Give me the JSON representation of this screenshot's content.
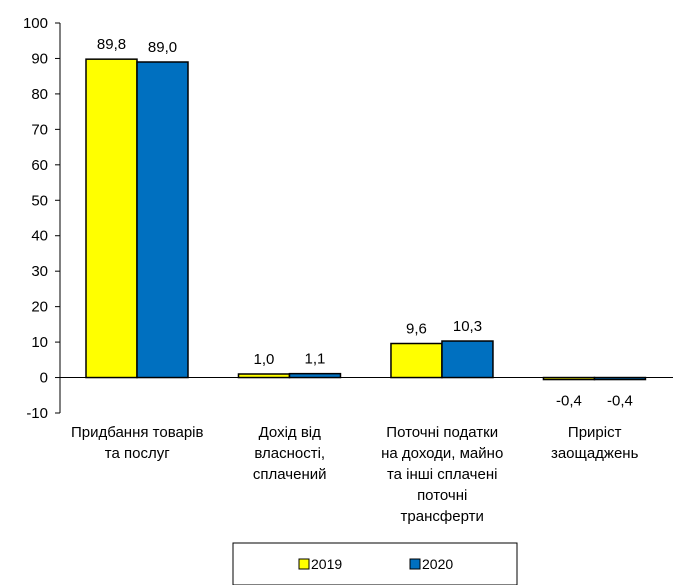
{
  "chart_data": {
    "type": "bar",
    "categories": [
      [
        "Придбання товарів",
        "та послуг"
      ],
      [
        "Дохід від",
        "власності,",
        "сплачений"
      ],
      [
        "Поточні податки",
        "на доходи, майно",
        "та інші сплачені",
        "поточні",
        "трансферти"
      ],
      [
        "Приріст",
        "заощаджень"
      ]
    ],
    "series": [
      {
        "name": "2019",
        "color": "#FFFF00",
        "values": [
          89.8,
          1.0,
          9.6,
          -0.4
        ],
        "labels": [
          "89,8",
          "1,0",
          "9,6",
          "-0,4"
        ]
      },
      {
        "name": "2020",
        "color": "#0070C0",
        "values": [
          89.0,
          1.1,
          10.3,
          -0.4
        ],
        "labels": [
          "89,0",
          "1,1",
          "10,3",
          "-0,4"
        ]
      }
    ],
    "ylim": [
      -10,
      100
    ],
    "yticks": [
      "-10",
      "0",
      "10",
      "20",
      "30",
      "40",
      "50",
      "60",
      "70",
      "80",
      "90",
      "100"
    ],
    "grid": false,
    "legend_position": "bottom"
  }
}
